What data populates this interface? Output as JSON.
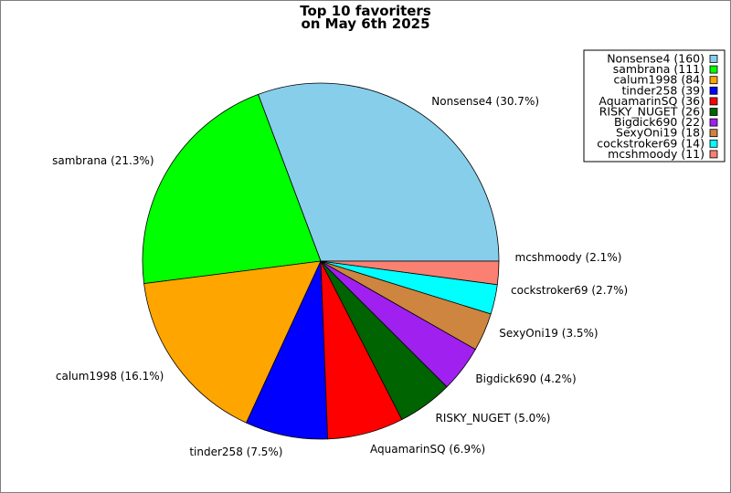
{
  "chart_data": {
    "type": "pie",
    "title": [
      "Top 10 favoriters",
      "on May 6th 2025"
    ],
    "start_angle_deg": 0,
    "direction": "clockwise",
    "legend_placement": "top-right",
    "slices": [
      {
        "name": "Nonsense4",
        "value": 160,
        "percent": "30.7%",
        "color": "#87CEEB"
      },
      {
        "name": "sambrana",
        "value": 111,
        "percent": "21.3%",
        "color": "#00FF00"
      },
      {
        "name": "calum1998",
        "value": 84,
        "percent": "16.1%",
        "color": "#FFA500"
      },
      {
        "name": "tinder258",
        "value": 39,
        "percent": "7.5%",
        "color": "#0000FF"
      },
      {
        "name": "AquamarinSQ",
        "value": 36,
        "percent": "6.9%",
        "color": "#FF0000"
      },
      {
        "name": "RISKY_NUGET",
        "value": 26,
        "percent": "5.0%",
        "color": "#006400"
      },
      {
        "name": "Bigdick690",
        "value": 22,
        "percent": "4.2%",
        "color": "#A020F0"
      },
      {
        "name": "SexyOni19",
        "value": 18,
        "percent": "3.5%",
        "color": "#CD853F"
      },
      {
        "name": "cockstroker69",
        "value": 14,
        "percent": "2.7%",
        "color": "#00FFFF"
      },
      {
        "name": "mcshmoody",
        "value": 11,
        "percent": "2.1%",
        "color": "#FA8072"
      }
    ]
  }
}
